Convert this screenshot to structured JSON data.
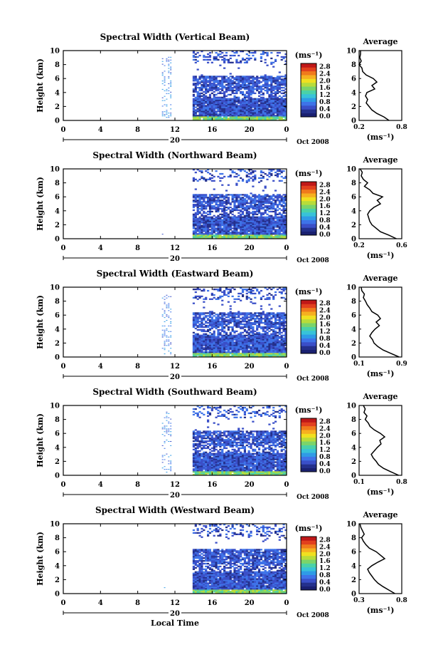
{
  "colors": {
    "scale": [
      "#1a2070",
      "#24308c",
      "#3a4fc8",
      "#3e73e8",
      "#2f9be6",
      "#38c2d8",
      "#4ad1a8",
      "#7bd46a",
      "#b8dc3a",
      "#f0e020",
      "#f6b020",
      "#f07a1c",
      "#e2401e",
      "#c01818"
    ],
    "profile": "#000000"
  },
  "month_label": "Oct 2008",
  "day_label": "20",
  "local_time_label": "Local Time",
  "units": "(ms⁻¹)",
  "avg_title": "Average",
  "height_label": "Height (km)",
  "x_ticks": [
    "0",
    "4",
    "8",
    "12",
    "16",
    "20",
    "0"
  ],
  "height_ticks": [
    "0",
    "2",
    "4",
    "6",
    "8",
    "10"
  ],
  "colorbar_ticks": [
    "0.0",
    "0.4",
    "0.8",
    "1.2",
    "1.6",
    "2.0",
    "2.4",
    "2.8"
  ],
  "chart_data": [
    {
      "type": "heatmap",
      "title": "Spectral Width (Vertical Beam)",
      "xlabel": "",
      "ylabel": "Height (km)",
      "xlim": [
        0,
        24
      ],
      "ylim": [
        0,
        10
      ],
      "color_range": [
        0,
        2.8
      ],
      "avg_xlabel": "(ms⁻¹)",
      "avg_ticks": [
        "0.2",
        "0.8"
      ],
      "avg_xlim": [
        0.2,
        0.8
      ],
      "avg_profile": [
        [
          0.0,
          0.62
        ],
        [
          0.5,
          0.55
        ],
        [
          1.0,
          0.45
        ],
        [
          1.5,
          0.38
        ],
        [
          2.0,
          0.34
        ],
        [
          2.5,
          0.3
        ],
        [
          3.0,
          0.32
        ],
        [
          3.5,
          0.29
        ],
        [
          4.0,
          0.31
        ],
        [
          4.5,
          0.42
        ],
        [
          5.0,
          0.38
        ],
        [
          5.5,
          0.45
        ],
        [
          6.0,
          0.4
        ],
        [
          6.5,
          0.3
        ],
        [
          7.0,
          0.25
        ],
        [
          7.5,
          0.24
        ],
        [
          8.0,
          0.2
        ],
        [
          8.5,
          0.23
        ],
        [
          9.0,
          0.21
        ],
        [
          9.5,
          0.22
        ],
        [
          10.0,
          0.22
        ]
      ]
    },
    {
      "type": "heatmap",
      "title": "Spectral Width (Northward Beam)",
      "xlabel": "",
      "ylabel": "Height (km)",
      "xlim": [
        0,
        24
      ],
      "ylim": [
        0,
        10
      ],
      "color_range": [
        0,
        2.8
      ],
      "avg_xlabel": "(ms⁻¹)",
      "avg_ticks": [
        "0.2",
        "0.6"
      ],
      "avg_xlim": [
        0.2,
        0.6
      ],
      "avg_profile": [
        [
          0.0,
          0.55
        ],
        [
          0.5,
          0.48
        ],
        [
          1.0,
          0.4
        ],
        [
          1.5,
          0.36
        ],
        [
          2.0,
          0.32
        ],
        [
          2.5,
          0.3
        ],
        [
          3.0,
          0.29
        ],
        [
          3.5,
          0.28
        ],
        [
          4.0,
          0.3
        ],
        [
          4.5,
          0.34
        ],
        [
          5.0,
          0.4
        ],
        [
          5.5,
          0.37
        ],
        [
          6.0,
          0.42
        ],
        [
          6.5,
          0.33
        ],
        [
          7.0,
          0.3
        ],
        [
          7.5,
          0.25
        ],
        [
          8.0,
          0.28
        ],
        [
          8.5,
          0.24
        ],
        [
          9.0,
          0.22
        ],
        [
          9.5,
          0.23
        ],
        [
          10.0,
          0.21
        ]
      ]
    },
    {
      "type": "heatmap",
      "title": "Spectral Width (Eastward Beam)",
      "xlabel": "",
      "ylabel": "Height (km)",
      "xlim": [
        0,
        24
      ],
      "ylim": [
        0,
        10
      ],
      "color_range": [
        0,
        2.8
      ],
      "avg_xlabel": "(ms⁻¹)",
      "avg_ticks": [
        "0.1",
        "0.9"
      ],
      "avg_xlim": [
        0.1,
        0.9
      ],
      "avg_profile": [
        [
          0.0,
          0.85
        ],
        [
          0.5,
          0.7
        ],
        [
          1.0,
          0.55
        ],
        [
          1.5,
          0.45
        ],
        [
          2.0,
          0.38
        ],
        [
          2.5,
          0.35
        ],
        [
          3.0,
          0.3
        ],
        [
          3.5,
          0.34
        ],
        [
          4.0,
          0.4
        ],
        [
          4.5,
          0.48
        ],
        [
          5.0,
          0.42
        ],
        [
          5.5,
          0.5
        ],
        [
          6.0,
          0.45
        ],
        [
          6.5,
          0.34
        ],
        [
          7.0,
          0.3
        ],
        [
          7.5,
          0.25
        ],
        [
          8.0,
          0.22
        ],
        [
          8.5,
          0.18
        ],
        [
          9.0,
          0.2
        ],
        [
          9.5,
          0.15
        ],
        [
          10.0,
          0.14
        ]
      ]
    },
    {
      "type": "heatmap",
      "title": "Spectral Width (Southward Beam)",
      "xlabel": "",
      "ylabel": "Height (km)",
      "xlim": [
        0,
        24
      ],
      "ylim": [
        0,
        10
      ],
      "color_range": [
        0,
        2.8
      ],
      "avg_xlabel": "(ms⁻¹)",
      "avg_ticks": [
        "0.1",
        "0.8"
      ],
      "avg_xlim": [
        0.1,
        0.8
      ],
      "avg_profile": [
        [
          0.0,
          0.75
        ],
        [
          0.5,
          0.62
        ],
        [
          1.0,
          0.5
        ],
        [
          1.5,
          0.42
        ],
        [
          2.0,
          0.38
        ],
        [
          2.5,
          0.33
        ],
        [
          3.0,
          0.3
        ],
        [
          3.5,
          0.35
        ],
        [
          4.0,
          0.4
        ],
        [
          4.5,
          0.46
        ],
        [
          5.0,
          0.44
        ],
        [
          5.5,
          0.52
        ],
        [
          6.0,
          0.45
        ],
        [
          6.5,
          0.35
        ],
        [
          7.0,
          0.28
        ],
        [
          7.5,
          0.25
        ],
        [
          8.0,
          0.2
        ],
        [
          8.5,
          0.23
        ],
        [
          9.0,
          0.18
        ],
        [
          9.5,
          0.2
        ],
        [
          10.0,
          0.17
        ]
      ]
    },
    {
      "type": "heatmap",
      "title": "Spectral Width (Westward Beam)",
      "xlabel": "Local Time",
      "ylabel": "Height (km)",
      "xlim": [
        0,
        24
      ],
      "ylim": [
        0,
        10
      ],
      "color_range": [
        0,
        2.8
      ],
      "avg_xlabel": "(ms⁻¹)",
      "avg_ticks": [
        "0.3",
        "0.8"
      ],
      "avg_xlim": [
        0.3,
        0.8
      ],
      "avg_profile": [
        [
          0.0,
          0.72
        ],
        [
          0.5,
          0.65
        ],
        [
          1.0,
          0.58
        ],
        [
          1.5,
          0.52
        ],
        [
          2.0,
          0.48
        ],
        [
          2.5,
          0.45
        ],
        [
          3.0,
          0.42
        ],
        [
          3.5,
          0.4
        ],
        [
          4.0,
          0.45
        ],
        [
          4.5,
          0.52
        ],
        [
          5.0,
          0.6
        ],
        [
          5.5,
          0.55
        ],
        [
          6.0,
          0.5
        ],
        [
          6.5,
          0.42
        ],
        [
          7.0,
          0.38
        ],
        [
          7.5,
          0.35
        ],
        [
          8.0,
          0.33
        ],
        [
          8.5,
          0.36
        ],
        [
          9.0,
          0.34
        ],
        [
          9.5,
          0.32
        ],
        [
          10.0,
          0.31
        ]
      ]
    }
  ]
}
